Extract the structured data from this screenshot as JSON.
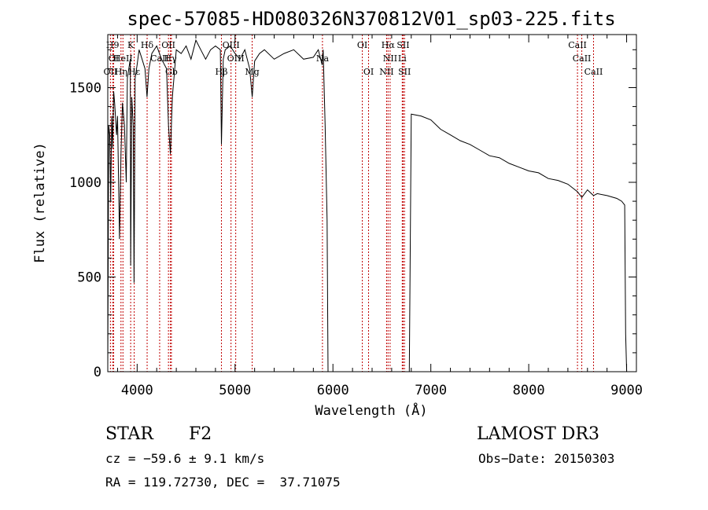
{
  "chart_data": {
    "type": "line",
    "title": "spec-57085-HD080326N370812V01_sp03-225.fits",
    "xlabel": "Wavelength (Å)",
    "ylabel": "Flux (relative)",
    "xlim": [
      3700,
      9100
    ],
    "ylim": [
      0,
      1780
    ],
    "xticks": [
      4000,
      5000,
      6000,
      7000,
      8000,
      9000
    ],
    "yticks": [
      0,
      500,
      1000,
      1500
    ],
    "series": [
      {
        "name": "flux",
        "x": [
          3700,
          3710,
          3720,
          3730,
          3740,
          3750,
          3760,
          3770,
          3790,
          3800,
          3820,
          3835,
          3850,
          3870,
          3889,
          3900,
          3930,
          3934,
          3945,
          3960,
          3968,
          3980,
          4000,
          4020,
          4050,
          4080,
          4101,
          4120,
          4150,
          4200,
          4250,
          4300,
          4320,
          4340,
          4360,
          4400,
          4450,
          4500,
          4550,
          4600,
          4650,
          4700,
          4750,
          4800,
          4850,
          4861,
          4880,
          4900,
          4950,
          5000,
          5050,
          5100,
          5150,
          5175,
          5200,
          5250,
          5300,
          5400,
          5500,
          5600,
          5700,
          5800,
          5850,
          5890,
          5900,
          5920,
          5940,
          5950,
          6000,
          6100,
          6200,
          6300,
          6400,
          6500,
          6563,
          6600,
          6700,
          6750,
          6760,
          6780,
          6800,
          6900,
          7000,
          7100,
          7200,
          7300,
          7400,
          7500,
          7600,
          7700,
          7800,
          7900,
          8000,
          8100,
          8200,
          8300,
          8400,
          8498,
          8542,
          8600,
          8662,
          8700,
          8800,
          8900,
          8950,
          8980,
          8990,
          9000
        ],
        "y": [
          30,
          1300,
          1250,
          900,
          1350,
          1180,
          1480,
          1420,
          1250,
          1350,
          700,
          1150,
          1420,
          1300,
          1000,
          1550,
          1650,
          560,
          1450,
          1300,
          470,
          1550,
          1620,
          1700,
          1650,
          1600,
          1450,
          1600,
          1680,
          1720,
          1650,
          1600,
          1300,
          1150,
          1450,
          1700,
          1680,
          1720,
          1650,
          1750,
          1700,
          1650,
          1700,
          1720,
          1700,
          1200,
          1650,
          1700,
          1720,
          1680,
          1650,
          1700,
          1600,
          1450,
          1640,
          1680,
          1700,
          1650,
          1680,
          1700,
          1650,
          1660,
          1700,
          1620,
          1700,
          1300,
          800,
          0,
          0,
          0,
          0,
          0,
          0,
          0,
          0,
          0,
          0,
          0,
          0,
          0,
          1360,
          1350,
          1330,
          1280,
          1250,
          1220,
          1200,
          1170,
          1140,
          1130,
          1100,
          1080,
          1060,
          1050,
          1020,
          1010,
          990,
          950,
          920,
          960,
          930,
          940,
          930,
          915,
          900,
          880,
          200,
          0
        ]
      }
    ],
    "lines": [
      {
        "name": "OII",
        "wl": 3727,
        "row": 3
      },
      {
        "name": "H9",
        "wl": 3750,
        "row": 1
      },
      {
        "name": "OI",
        "wl": 3760,
        "row": 2
      },
      {
        "name": "Hη",
        "wl": 3835,
        "row": 3
      },
      {
        "name": "HeII",
        "wl": 3855,
        "row": 2
      },
      {
        "name": "K",
        "wl": 3934,
        "row": 1
      },
      {
        "name": "Hε",
        "wl": 3970,
        "row": 3
      },
      {
        "name": "Hδ",
        "wl": 4102,
        "row": 1
      },
      {
        "name": "CaII",
        "wl": 4230,
        "row": 2
      },
      {
        "name": "OII",
        "wl": 4320,
        "row": 1
      },
      {
        "name": "Hγ",
        "wl": 4340,
        "row": 2
      },
      {
        "name": "Gb",
        "wl": 4350,
        "row": 3
      },
      {
        "name": "Hβ",
        "wl": 4861,
        "row": 3
      },
      {
        "name": "OIII",
        "wl": 4959,
        "row": 1
      },
      {
        "name": "OIII",
        "wl": 5007,
        "row": 2
      },
      {
        "name": "Mg",
        "wl": 5175,
        "row": 3
      },
      {
        "name": "Na",
        "wl": 5893,
        "row": 2
      },
      {
        "name": "OI",
        "wl": 6300,
        "row": 1
      },
      {
        "name": "OI",
        "wl": 6364,
        "row": 3
      },
      {
        "name": "Hα",
        "wl": 6563,
        "row": 1
      },
      {
        "name": "NII",
        "wl": 6584,
        "row": 2
      },
      {
        "name": "NII",
        "wl": 6548,
        "row": 3
      },
      {
        "name": "SII",
        "wl": 6717,
        "row": 1
      },
      {
        "name": "Li",
        "wl": 6708,
        "row": 2
      },
      {
        "name": "SII",
        "wl": 6731,
        "row": 3
      },
      {
        "name": "CaII",
        "wl": 8498,
        "row": 1
      },
      {
        "name": "CaII",
        "wl": 8542,
        "row": 2
      },
      {
        "name": "CaII",
        "wl": 8662,
        "row": 3
      }
    ]
  },
  "info": {
    "object_class": "STAR",
    "subclass": "F2",
    "survey": "LAMOST DR3",
    "cz": "cz = −59.6 ± 9.1 km/s",
    "obs_date": "Obs−Date: 20150303",
    "radec": "RA = 119.72730, DEC =  37.71075"
  }
}
